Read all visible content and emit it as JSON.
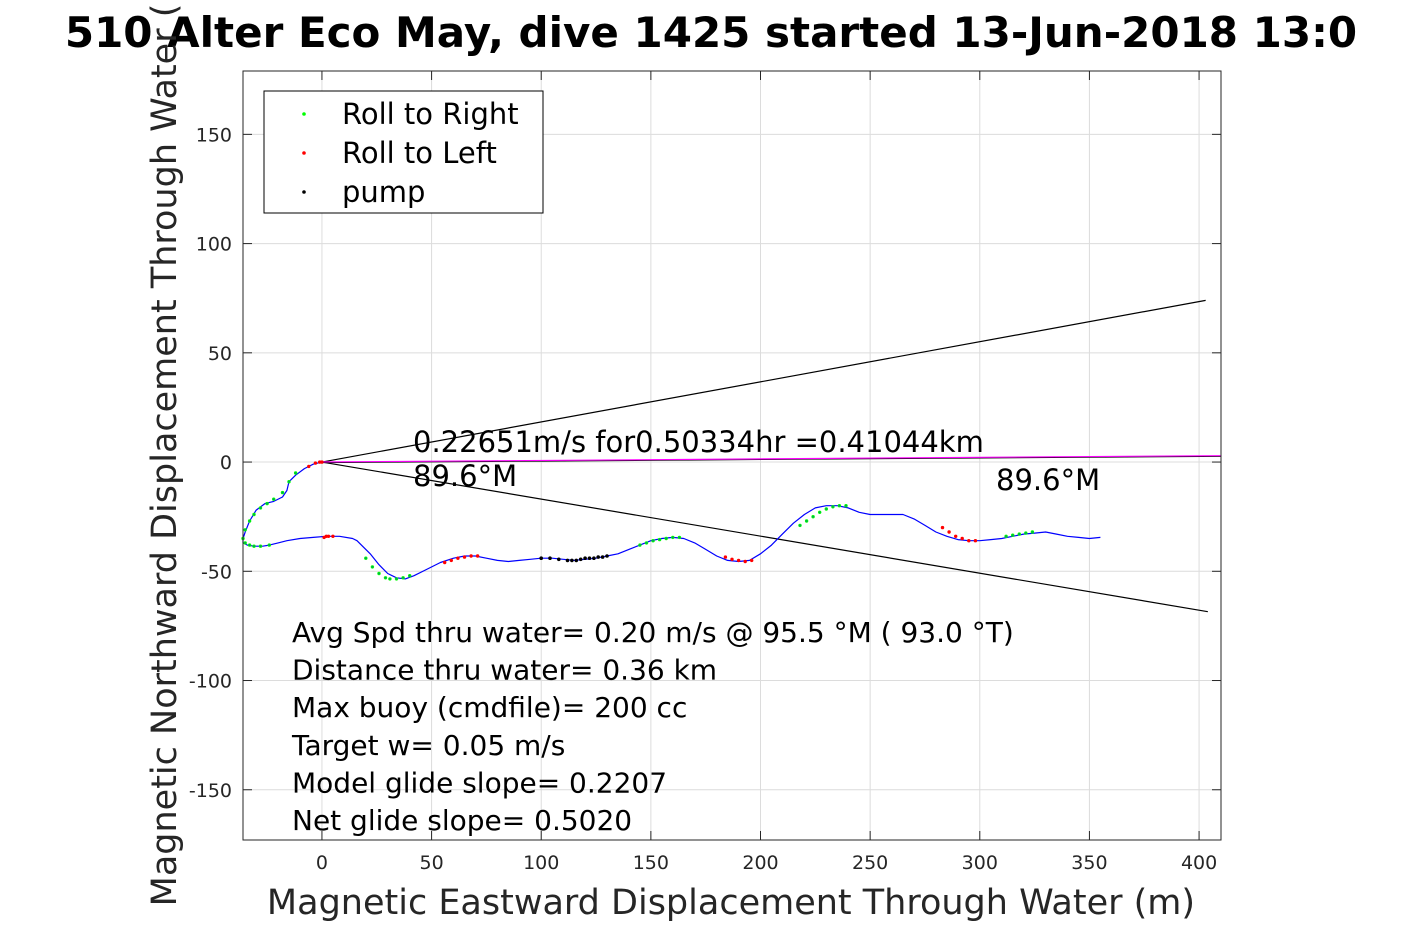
{
  "chart_data": {
    "type": "scatter",
    "title": "510 Alter Eco May, dive 1425 started 13-Jun-2018 13:0",
    "xlabel": "Magnetic Eastward Displacement Through Water (m)",
    "ylabel": "Magnetic Northward Displacement Through Water (",
    "xlim": [
      -36,
      410
    ],
    "ylim": [
      -173,
      179
    ],
    "x_ticks": [
      0,
      50,
      100,
      150,
      200,
      250,
      300,
      350,
      400
    ],
    "y_ticks": [
      -150,
      -100,
      -50,
      0,
      50,
      100,
      150
    ],
    "grid": true,
    "legend_position": "top-left",
    "colors": {
      "track": "#0000ff",
      "roll_right": "#00ff00",
      "roll_left": "#ff0000",
      "pump": "#000000",
      "heading_line": "#ff00ff",
      "cone_lines": "#000000",
      "dot_overlay": "#008080"
    },
    "legend": [
      {
        "label": "Roll to Right",
        "color": "#00ff00",
        "marker": "dot"
      },
      {
        "label": "Roll to Left",
        "color": "#ff0000",
        "marker": "dot"
      },
      {
        "label": "pump",
        "color": "#000000",
        "marker": "dot"
      }
    ],
    "track": {
      "name": "track",
      "x": [
        0,
        -4,
        -8,
        -12,
        -15,
        -16,
        -18,
        -22,
        -26,
        -30,
        -33,
        -35,
        -36,
        -36,
        -34,
        -31,
        -27,
        -24,
        -20,
        -16,
        -10,
        -4,
        2,
        8,
        14,
        16,
        18,
        22,
        26,
        30,
        34,
        38,
        42,
        48,
        54,
        60,
        65,
        70,
        75,
        80,
        85,
        90,
        95,
        100,
        105,
        110,
        115,
        120,
        125,
        130,
        135,
        140,
        145,
        150,
        155,
        160,
        165,
        170,
        175,
        180,
        185,
        190,
        195,
        200,
        205,
        210,
        215,
        220,
        225,
        230,
        235,
        240,
        245,
        250,
        255,
        260,
        265,
        270,
        275,
        280,
        285,
        290,
        295,
        300,
        305,
        310,
        315,
        320,
        325,
        330,
        335,
        340,
        345,
        350,
        355
      ],
      "y": [
        0,
        -1,
        -3,
        -6,
        -9,
        -13,
        -16,
        -18,
        -19,
        -22,
        -27,
        -32,
        -35,
        -37,
        -38,
        -38.5,
        -38.5,
        -38,
        -37,
        -36,
        -35,
        -34.5,
        -34,
        -34,
        -35,
        -36,
        -38,
        -42,
        -47,
        -51,
        -53,
        -53.5,
        -52,
        -49,
        -46,
        -44,
        -43,
        -43,
        -44,
        -45,
        -45.5,
        -45,
        -44.5,
        -44,
        -44,
        -44.5,
        -45,
        -44.5,
        -44,
        -43,
        -42,
        -40,
        -38,
        -36,
        -35,
        -34.5,
        -35,
        -37,
        -40,
        -43,
        -45,
        -45.5,
        -45,
        -42,
        -38,
        -33,
        -28,
        -24,
        -21,
        -20,
        -20,
        -21,
        -23,
        -24,
        -24,
        -24,
        -24,
        -26,
        -29,
        -32,
        -34,
        -35.5,
        -36,
        -36,
        -35.5,
        -35,
        -34,
        -33,
        -32.5,
        -32,
        -33,
        -34,
        -34.5,
        -35,
        -34.5
      ]
    },
    "roll_right": {
      "name": "Roll to Right",
      "x": [
        -12,
        -15,
        -18,
        -22,
        -25,
        -28,
        -31,
        -33,
        -35,
        -36,
        -35,
        -33,
        -31,
        -28,
        -24,
        20,
        23,
        26,
        29,
        31,
        34,
        37,
        40,
        145,
        148,
        151,
        154,
        157,
        160,
        163,
        218,
        221,
        224,
        227,
        230,
        233,
        236,
        239,
        312,
        315,
        318,
        321,
        324
      ],
      "y": [
        -5,
        -9,
        -14,
        -17,
        -19,
        -21,
        -24,
        -27,
        -31,
        -35,
        -37,
        -38,
        -38.5,
        -38.5,
        -38,
        -44,
        -48,
        -51,
        -53,
        -53.5,
        -53.5,
        -53,
        -52,
        -38,
        -37,
        -36,
        -35.5,
        -35,
        -34.5,
        -34.5,
        -29,
        -27,
        -25,
        -23,
        -21.5,
        -20.5,
        -20,
        -20,
        -34,
        -33.5,
        -33,
        -32.5,
        -32
      ]
    },
    "roll_left": {
      "name": "Roll to Left",
      "x": [
        -6,
        -3,
        -1,
        0,
        1,
        2,
        3,
        5,
        56,
        59,
        62,
        65,
        68,
        71,
        184,
        187,
        190,
        193,
        196,
        283,
        286,
        289,
        292,
        295,
        298
      ],
      "y": [
        -2,
        -0.5,
        0,
        0,
        -34.5,
        -34,
        -34,
        -34,
        -46,
        -45,
        -44,
        -43.5,
        -43,
        -43,
        -43.5,
        -44.5,
        -45,
        -45.5,
        -45,
        -30,
        -32,
        -34,
        -35,
        -36,
        -36
      ]
    },
    "pump": {
      "name": "pump",
      "x": [
        100,
        104,
        108,
        112,
        114,
        116,
        118,
        120,
        122,
        124,
        126,
        128,
        130
      ],
      "y": [
        -44,
        -44,
        -44.5,
        -45,
        -45,
        -45,
        -44.5,
        -44,
        -44,
        -44,
        -43.5,
        -43.5,
        -43
      ]
    },
    "heading_line": {
      "x": [
        0,
        410
      ],
      "y": [
        0,
        2.9
      ]
    },
    "cone_upper": {
      "x": [
        0,
        403
      ],
      "y": [
        0,
        74
      ]
    },
    "cone_lower": {
      "x": [
        0,
        404
      ],
      "y": [
        0,
        -68.5
      ]
    },
    "annotations": {
      "speed_line": "0.22651m/s for0.50334hr =0.41044km",
      "heading_near": "89.6°M",
      "heading_far": "89.6°M"
    },
    "stats": [
      "Avg Spd thru water=  0.20 m/s @  95.5 °M ( 93.0 °T)",
      "Distance thru water=  0.36 km",
      "Max buoy (cmdfile)= 200 cc",
      "Target w= 0.05 m/s",
      "Model glide slope= 0.2207",
      "Net glide slope= 0.5020"
    ]
  }
}
